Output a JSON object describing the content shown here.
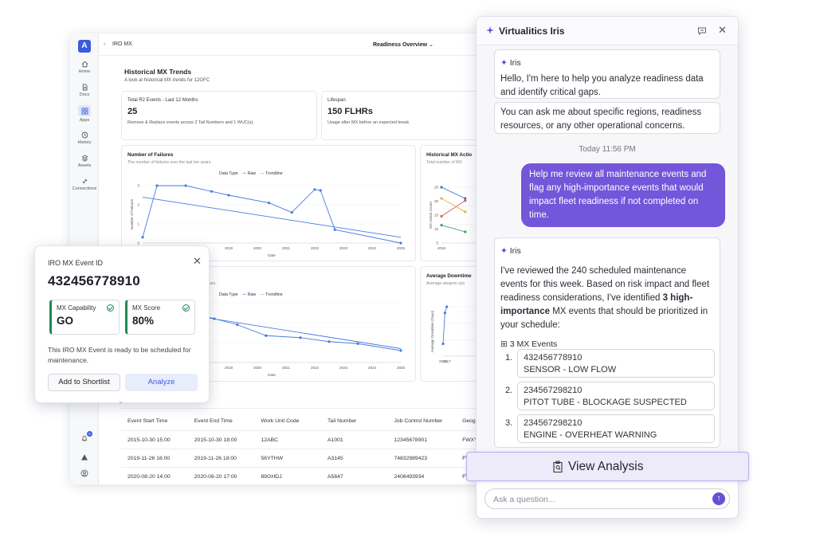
{
  "app": {
    "logo_letter": "A",
    "breadcrumb": "IRO MX",
    "view_selector": "Readiness Overview",
    "rail": [
      {
        "label": "Home",
        "icon": "home-icon"
      },
      {
        "label": "Docs",
        "icon": "document-icon"
      },
      {
        "label": "Apps",
        "icon": "apps-icon"
      },
      {
        "label": "History",
        "icon": "history-icon"
      },
      {
        "label": "Assets",
        "icon": "assets-icon"
      },
      {
        "label": "Connections",
        "icon": "connections-icon"
      }
    ],
    "notification_count": "5"
  },
  "trends": {
    "title": "Historical MX Trends",
    "subtitle": "A look at historical MX trends for 12GFC"
  },
  "kpis": [
    {
      "label": "Total R2 Events - Last 12 Months",
      "value": "25",
      "desc": "Remove & Replace events across 2 Tail Numbers and 1 WUC(s)."
    },
    {
      "label": "Lifespan",
      "value": "150 FLHRs",
      "desc": "Usage after MX before an expected break"
    }
  ],
  "legend": {
    "title": "Data Type",
    "raw": "Raw",
    "trend": "Trendline"
  },
  "chart_data": [
    {
      "type": "line",
      "title": "Number of Failures",
      "subtitle": "The number of failures over the last ten years.",
      "xlabel": "Date",
      "ylabel": "Number of Failures",
      "xlim": [
        2016,
        2025
      ],
      "ylim": [
        0,
        3
      ],
      "x_ticks": [
        "2016",
        "2017",
        "2018",
        "2019",
        "2020",
        "2021",
        "2022",
        "2023",
        "2024",
        "2025"
      ],
      "y_ticks": [
        "0",
        "1",
        "2",
        "3"
      ],
      "series": [
        {
          "name": "Raw",
          "x": [
            2016,
            2016.5,
            2017.5,
            2018.4,
            2019,
            2020.4,
            2021.2,
            2022,
            2022.2,
            2022.7,
            2025
          ],
          "y": [
            0.3,
            3,
            3,
            2.7,
            2.5,
            2.1,
            1.6,
            2.8,
            2.75,
            0.7,
            0
          ]
        },
        {
          "name": "Trendline",
          "x": [
            2016,
            2025
          ],
          "y": [
            2.4,
            0.3
          ]
        }
      ]
    },
    {
      "type": "line",
      "title": "",
      "subtitle": "ars.",
      "xlabel": "Date",
      "ylabel": "",
      "xlim": [
        2016,
        2025
      ],
      "ylim": [
        0,
        3
      ],
      "x_ticks": [
        "2019",
        "2020",
        "2021",
        "2022",
        "2023",
        "2024",
        "2025"
      ],
      "series": [
        {
          "name": "Raw",
          "x": [
            2018,
            2018.5,
            2019.3,
            2020.3,
            2021.5,
            2022.5,
            2023.5,
            2025
          ],
          "y": [
            2.4,
            2.2,
            1.9,
            1.35,
            1.25,
            1.05,
            0.95,
            0.6
          ]
        },
        {
          "name": "Trendline",
          "x": [
            2018,
            2025
          ],
          "y": [
            2.3,
            0.7
          ]
        }
      ]
    },
    {
      "type": "line",
      "title": "Historical MX Actio",
      "subtitle": "Total number of MX",
      "ylabel": "MX Action Count",
      "x_ticks": [
        "2016"
      ],
      "y_ticks": [
        "25",
        "20",
        "15",
        "10",
        "5"
      ],
      "series": [
        {
          "name": "",
          "color": "#3b6fd8",
          "x": [
            2016,
            2018
          ],
          "y": [
            25,
            20
          ]
        },
        {
          "name": "",
          "color": "#e05a4b",
          "x": [
            2016,
            2018
          ],
          "y": [
            12,
            19
          ]
        },
        {
          "name": "",
          "color": "#e0b33a",
          "x": [
            2016,
            2018
          ],
          "y": [
            20,
            14
          ]
        },
        {
          "name": "",
          "color": "#3aa55b",
          "x": [
            2016,
            2018
          ],
          "y": [
            8,
            5
          ]
        }
      ]
    },
    {
      "type": "line",
      "title": "Average Downtime",
      "subtitle": "Average weapon sys",
      "ylabel": "Average Downtime (Days)",
      "x_ticks": [
        "2016",
        "2017"
      ],
      "series": [
        {
          "name": "Raw",
          "x": [
            2016,
            2016.5,
            2017
          ],
          "y": [
            1,
            3.5,
            4
          ]
        }
      ]
    }
  ],
  "table": {
    "columns": [
      "Event Start Time",
      "Event End Time",
      "Work Unit Code",
      "Tail Number",
      "Job Control Number",
      "Geogra"
    ],
    "rows": [
      [
        "2015-10-30 15:00",
        "2015-10-30 18:00",
        "12ABC",
        "A1001",
        "12345678901",
        "FWXY"
      ],
      [
        "2019-11-26 16:00",
        "2019-11-26 18:00",
        "56YTHW",
        "A3145",
        "74832989423",
        "FW"
      ],
      [
        "2020-08-20 14:00",
        "2020-08-20 17:00",
        "89GHDJ",
        "A5647",
        "2408493934",
        "FW"
      ]
    ]
  },
  "popup": {
    "label": "IRO MX Event ID",
    "event_id": "432456778910",
    "capability_label": "MX Capability",
    "capability_value": "GO",
    "score_label": "MX Score",
    "score_value": "80%",
    "message": "This IRO MX Event is ready to be scheduled for maintenance.",
    "shortlist_button": "Add to Shortlist",
    "analyze_button": "Analyze"
  },
  "iris": {
    "title": "Virtualitics Iris",
    "bot_name": "Iris",
    "greeting": "Hello, I'm here to help you analyze readiness data and identify critical gaps.",
    "help": "You can ask me about specific regions, readiness resources, or any other operational concerns.",
    "timestamp": "Today 11:56 PM",
    "user_message": "Help me review all maintenance events and flag any high-importance events that would impact fleet readiness if not completed on time.",
    "reply_part1": "I've reviewed the 240 scheduled maintenance events for this week. Based on risk impact and fleet readiness considerations, I've identified ",
    "reply_bold": "3 high-importance",
    "reply_part2": " MX events that should be prioritized in your schedule:",
    "events_label": "3 MX Events",
    "events": [
      {
        "num": "1.",
        "id": "432456778910",
        "desc": "SENSOR - LOW FLOW"
      },
      {
        "num": "2.",
        "id": "234567298210",
        "desc": "PITOT TUBE - BLOCKAGE SUSPECTED"
      },
      {
        "num": "3.",
        "id": "234567298210",
        "desc": "ENGINE - OVERHEAT WARNING"
      }
    ],
    "view_button": "View Analysis",
    "input_placeholder": "Ask a question..."
  },
  "colors": {
    "accent": "#7356d9",
    "primary": "#3b5bdb",
    "series_blue": "#4a7be0",
    "go_green": "#1f8a55"
  }
}
